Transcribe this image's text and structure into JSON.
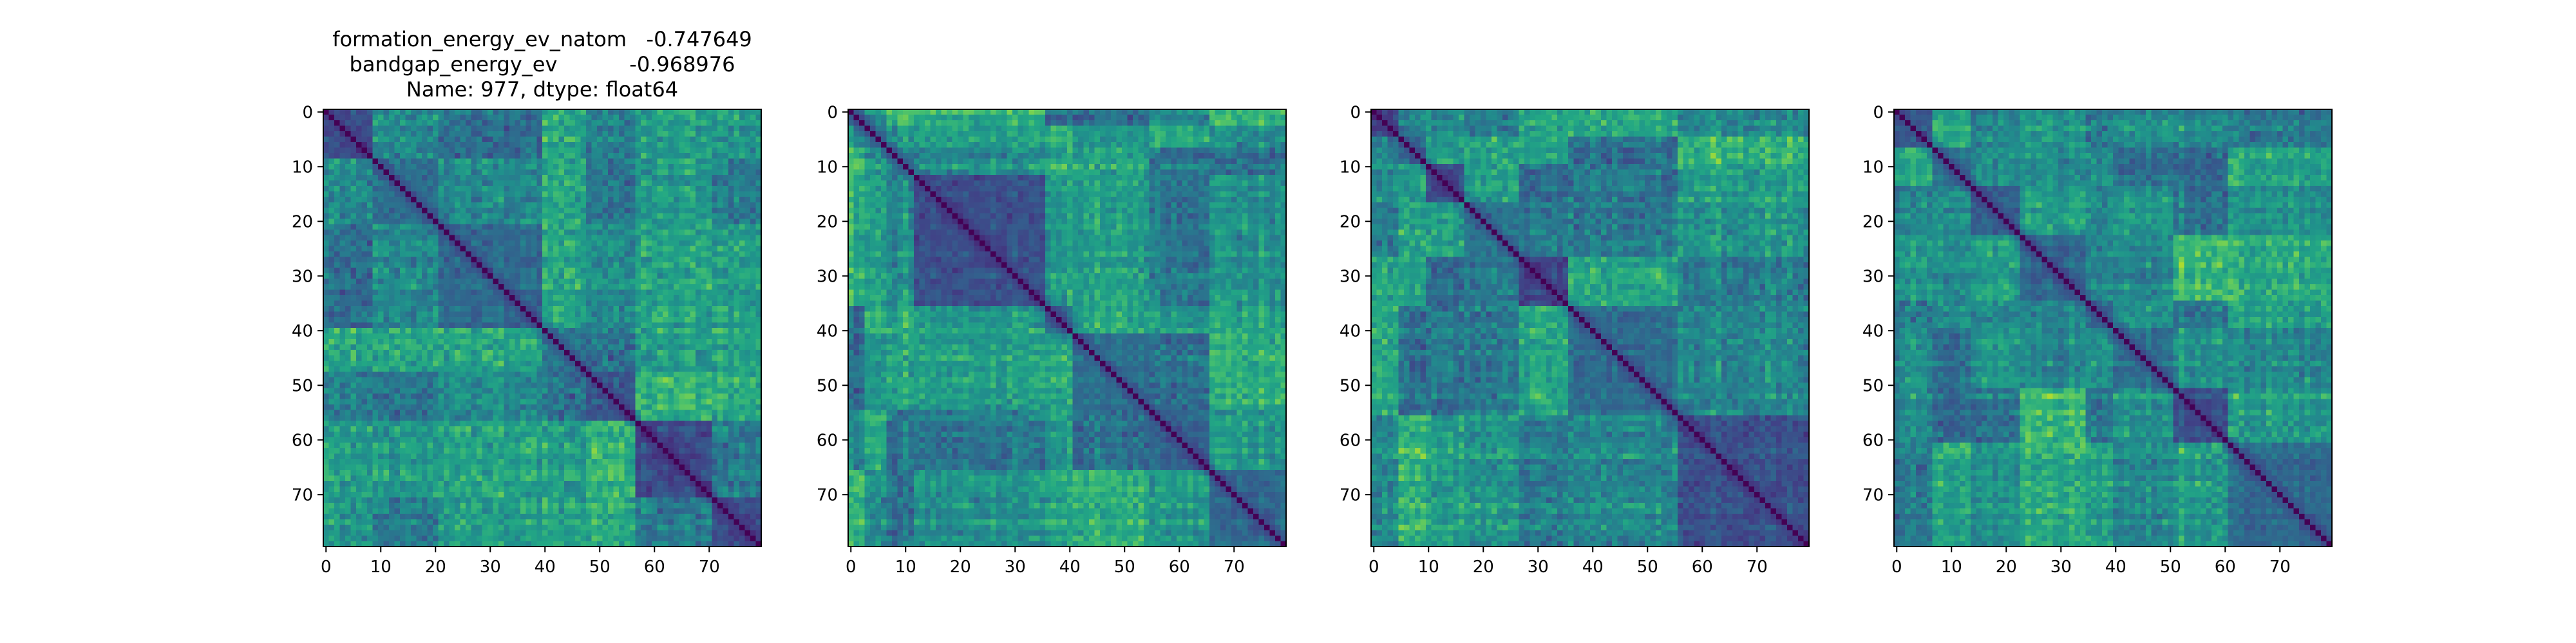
{
  "chart_data": [
    {
      "type": "heatmap",
      "title_lines": [
        "formation_energy_ev_natom   -0.747649",
        "bandgap_energy_ev           -0.968976",
        "Name: 977, dtype: float64"
      ],
      "matrix_size": 80,
      "colormap": "viridis",
      "block_boundaries": [
        0,
        9,
        21,
        40,
        48,
        57,
        71,
        80
      ],
      "x_ticks": [
        0,
        10,
        20,
        30,
        40,
        50,
        60,
        70
      ],
      "y_ticks": [
        0,
        10,
        20,
        30,
        40,
        50,
        60,
        70
      ],
      "xlabel": "",
      "ylabel": ""
    },
    {
      "type": "heatmap",
      "title_lines": [],
      "matrix_size": 80,
      "colormap": "viridis",
      "block_boundaries": [
        0,
        3,
        7,
        12,
        36,
        41,
        55,
        66,
        80
      ],
      "x_ticks": [
        0,
        10,
        20,
        30,
        40,
        50,
        60,
        70
      ],
      "y_ticks": [
        0,
        10,
        20,
        30,
        40,
        50,
        60,
        70
      ],
      "xlabel": "",
      "ylabel": ""
    },
    {
      "type": "heatmap",
      "title_lines": [],
      "matrix_size": 80,
      "colormap": "viridis",
      "block_boundaries": [
        0,
        5,
        10,
        17,
        27,
        36,
        56,
        80
      ],
      "x_ticks": [
        0,
        10,
        20,
        30,
        40,
        50,
        60,
        70
      ],
      "y_ticks": [
        0,
        10,
        20,
        30,
        40,
        50,
        60,
        70
      ],
      "xlabel": "",
      "ylabel": ""
    },
    {
      "type": "heatmap",
      "title_lines": [],
      "matrix_size": 80,
      "colormap": "viridis",
      "block_boundaries": [
        0,
        7,
        14,
        23,
        35,
        40,
        51,
        61,
        80
      ],
      "x_ticks": [
        0,
        10,
        20,
        30,
        40,
        50,
        60,
        70
      ],
      "y_ticks": [
        0,
        10,
        20,
        30,
        40,
        50,
        60,
        70
      ],
      "xlabel": "",
      "ylabel": ""
    }
  ]
}
